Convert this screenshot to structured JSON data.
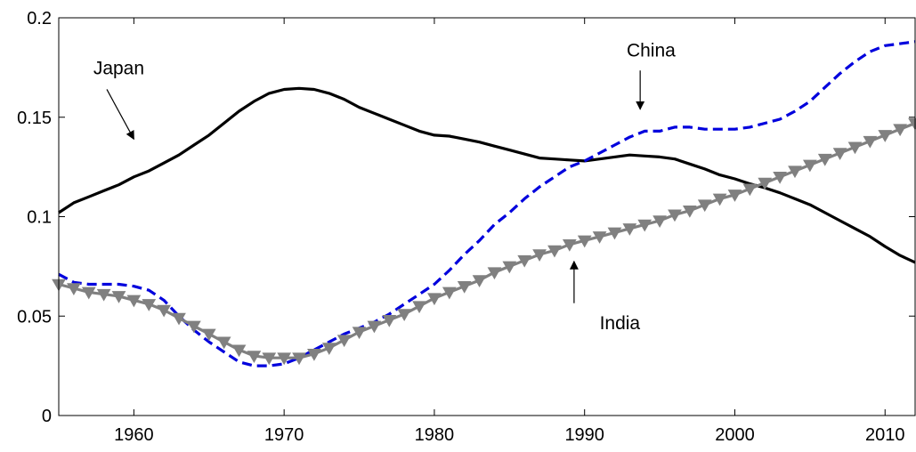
{
  "chart_data": {
    "type": "line",
    "title": "",
    "xlabel": "",
    "ylabel": "",
    "xlim": [
      1955,
      2012
    ],
    "ylim": [
      0,
      0.2
    ],
    "grid": false,
    "x_ticks": [
      1960,
      1970,
      1980,
      1990,
      2000,
      2010
    ],
    "x_tick_labels": [
      "1960",
      "1970",
      "1980",
      "1990",
      "2000",
      "2010"
    ],
    "y_ticks": [
      0,
      0.05,
      0.1,
      0.15,
      0.2
    ],
    "y_tick_labels": [
      "0",
      "0.05",
      "0.1",
      "0.15",
      "0.2"
    ],
    "series": [
      {
        "name": "Japan",
        "style": "solid",
        "color": "#000000",
        "x": [
          1955,
          1956,
          1957,
          1958,
          1959,
          1960,
          1961,
          1962,
          1963,
          1964,
          1965,
          1966,
          1967,
          1968,
          1969,
          1970,
          1971,
          1972,
          1973,
          1974,
          1975,
          1976,
          1977,
          1978,
          1979,
          1980,
          1981,
          1982,
          1983,
          1984,
          1985,
          1986,
          1987,
          1988,
          1989,
          1990,
          1991,
          1992,
          1993,
          1994,
          1995,
          1996,
          1997,
          1998,
          1999,
          2000,
          2001,
          2002,
          2003,
          2004,
          2005,
          2006,
          2007,
          2008,
          2009,
          2010,
          2011,
          2012
        ],
        "values": [
          0.102,
          0.107,
          0.11,
          0.113,
          0.116,
          0.12,
          0.123,
          0.127,
          0.131,
          0.136,
          0.141,
          0.147,
          0.153,
          0.158,
          0.162,
          0.164,
          0.1645,
          0.164,
          0.162,
          0.159,
          0.155,
          0.152,
          0.149,
          0.146,
          0.143,
          0.141,
          0.1405,
          0.139,
          0.1375,
          0.1355,
          0.1335,
          0.1315,
          0.1295,
          0.129,
          0.1285,
          0.128,
          0.129,
          0.13,
          0.131,
          0.1305,
          0.13,
          0.129,
          0.1265,
          0.124,
          0.121,
          0.119,
          0.1165,
          0.1145,
          0.112,
          0.109,
          0.106,
          0.102,
          0.098,
          0.094,
          0.09,
          0.085,
          0.0805,
          0.077
        ]
      },
      {
        "name": "China",
        "style": "dashed",
        "color": "#0000dd",
        "x": [
          1955,
          1956,
          1957,
          1958,
          1959,
          1960,
          1961,
          1962,
          1963,
          1964,
          1965,
          1966,
          1967,
          1968,
          1969,
          1970,
          1971,
          1972,
          1973,
          1974,
          1975,
          1976,
          1977,
          1978,
          1979,
          1980,
          1981,
          1982,
          1983,
          1984,
          1985,
          1986,
          1987,
          1988,
          1989,
          1990,
          1991,
          1992,
          1993,
          1994,
          1995,
          1996,
          1997,
          1998,
          1999,
          2000,
          2001,
          2002,
          2003,
          2004,
          2005,
          2006,
          2007,
          2008,
          2009,
          2010,
          2011,
          2012
        ],
        "values": [
          0.071,
          0.067,
          0.066,
          0.066,
          0.066,
          0.065,
          0.063,
          0.058,
          0.05,
          0.043,
          0.037,
          0.032,
          0.027,
          0.025,
          0.025,
          0.026,
          0.029,
          0.033,
          0.037,
          0.041,
          0.044,
          0.047,
          0.051,
          0.056,
          0.061,
          0.066,
          0.073,
          0.081,
          0.088,
          0.096,
          0.102,
          0.109,
          0.115,
          0.12,
          0.125,
          0.128,
          0.132,
          0.136,
          0.14,
          0.143,
          0.143,
          0.145,
          0.145,
          0.144,
          0.144,
          0.144,
          0.145,
          0.147,
          0.149,
          0.153,
          0.158,
          0.165,
          0.172,
          0.178,
          0.183,
          0.186,
          0.187,
          0.188
        ]
      },
      {
        "name": "India",
        "style": "solid-triangle-markers",
        "color": "#808080",
        "x": [
          1955,
          1956,
          1957,
          1958,
          1959,
          1960,
          1961,
          1962,
          1963,
          1964,
          1965,
          1966,
          1967,
          1968,
          1969,
          1970,
          1971,
          1972,
          1973,
          1974,
          1975,
          1976,
          1977,
          1978,
          1979,
          1980,
          1981,
          1982,
          1983,
          1984,
          1985,
          1986,
          1987,
          1988,
          1989,
          1990,
          1991,
          1992,
          1993,
          1994,
          1995,
          1996,
          1997,
          1998,
          1999,
          2000,
          2001,
          2002,
          2003,
          2004,
          2005,
          2006,
          2007,
          2008,
          2009,
          2010,
          2011,
          2012
        ],
        "values": [
          0.066,
          0.064,
          0.062,
          0.061,
          0.06,
          0.058,
          0.056,
          0.053,
          0.049,
          0.045,
          0.041,
          0.037,
          0.033,
          0.03,
          0.029,
          0.029,
          0.029,
          0.031,
          0.034,
          0.038,
          0.042,
          0.045,
          0.048,
          0.051,
          0.055,
          0.059,
          0.062,
          0.065,
          0.068,
          0.072,
          0.075,
          0.078,
          0.081,
          0.083,
          0.086,
          0.088,
          0.09,
          0.092,
          0.094,
          0.096,
          0.098,
          0.101,
          0.103,
          0.106,
          0.109,
          0.111,
          0.114,
          0.117,
          0.12,
          0.123,
          0.126,
          0.129,
          0.132,
          0.135,
          0.138,
          0.141,
          0.144,
          0.147
        ]
      }
    ],
    "annotations": [
      {
        "text": "Japan",
        "x": 1957.3,
        "y": 0.1715,
        "arrow_from": [
          1958.2,
          0.164
        ],
        "arrow_to": [
          1960,
          0.139
        ]
      },
      {
        "text": "China",
        "x": 1992.8,
        "y": 0.1805,
        "arrow_from": [
          1993.7,
          0.1735
        ],
        "arrow_to": [
          1993.7,
          0.154
        ]
      },
      {
        "text": "India",
        "x": 1991,
        "y": 0.0435,
        "arrow_from": [
          1989.3,
          0.0565
        ],
        "arrow_to": [
          1989.3,
          0.0775
        ]
      }
    ]
  }
}
